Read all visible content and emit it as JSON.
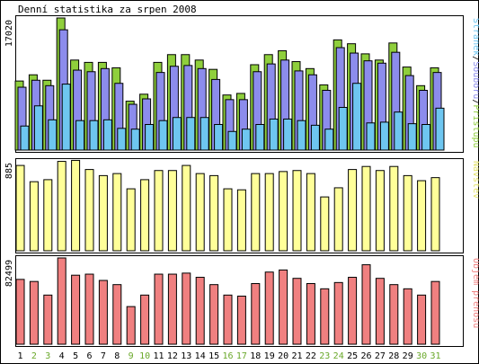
{
  "chart_title": "Denní statistika za srpen 2008",
  "colors": {
    "access": "#8fcf3c",
    "files": "#8c8cec",
    "pages": "#6ec6f0",
    "visits": "#ffff99",
    "volume": "#f08080",
    "weekend_day": "#6aa82a",
    "weekday": "#000000"
  },
  "chart_data": [
    {
      "type": "bar",
      "panel": "access",
      "ymax_label": "17020",
      "ymax": 17020,
      "legend": [
        {
          "text": "Stránek",
          "color": "#6ec6f0"
        },
        {
          "text": "/",
          "color": "#000000"
        },
        {
          "text": "Souborů",
          "color": "#8c8cec"
        },
        {
          "text": "/",
          "color": "#000000"
        },
        {
          "text": "Přístupů",
          "color": "#8fcf3c"
        }
      ],
      "categories": [
        "1",
        "2",
        "3",
        "4",
        "5",
        "6",
        "7",
        "8",
        "9",
        "10",
        "11",
        "12",
        "13",
        "14",
        "15",
        "16",
        "17",
        "18",
        "19",
        "20",
        "21",
        "22",
        "23",
        "24",
        "25",
        "26",
        "27",
        "28",
        "29",
        "30",
        "31"
      ],
      "weekend": [
        false,
        true,
        true,
        false,
        false,
        false,
        false,
        false,
        true,
        true,
        false,
        false,
        false,
        false,
        false,
        true,
        true,
        false,
        false,
        false,
        false,
        false,
        true,
        true,
        false,
        false,
        false,
        false,
        false,
        true,
        true
      ],
      "series": [
        {
          "name": "Přístupů",
          "values": [
            8900,
            9700,
            9000,
            17020,
            11600,
            11300,
            11300,
            10600,
            6300,
            7200,
            11300,
            12300,
            12300,
            11600,
            10400,
            7100,
            7300,
            11000,
            12300,
            12800,
            11400,
            10500,
            8400,
            14200,
            13700,
            12400,
            11600,
            13800,
            10700,
            8300,
            10600
          ]
        },
        {
          "name": "Souborů",
          "values": [
            8100,
            9000,
            8300,
            15500,
            10300,
            10100,
            10500,
            8600,
            5900,
            6600,
            10000,
            10800,
            10900,
            10500,
            9100,
            6500,
            6500,
            10100,
            11100,
            11600,
            10200,
            9700,
            7700,
            13200,
            12500,
            11500,
            11200,
            12600,
            9600,
            7700,
            10000
          ]
        },
        {
          "name": "Stránek",
          "values": [
            3100,
            5700,
            3900,
            8500,
            3800,
            3800,
            3900,
            2800,
            2700,
            3300,
            3800,
            4200,
            4200,
            4200,
            3300,
            2400,
            2700,
            3300,
            4000,
            4000,
            3800,
            3200,
            2700,
            5500,
            8600,
            3500,
            3600,
            4900,
            3400,
            3300,
            5400
          ]
        }
      ]
    },
    {
      "type": "bar",
      "panel": "visits",
      "ymax_label": "885",
      "ymax": 885,
      "legend": [
        {
          "text": "Návštěv",
          "color": "#e3e36a"
        }
      ],
      "values": [
        840,
        680,
        700,
        880,
        890,
        800,
        740,
        760,
        610,
        700,
        790,
        790,
        840,
        760,
        740,
        610,
        600,
        760,
        760,
        780,
        790,
        760,
        530,
        620,
        800,
        830,
        790,
        830,
        740,
        690,
        720
      ]
    },
    {
      "type": "bar",
      "panel": "volume",
      "ymax_label": "82499",
      "ymax": 82499,
      "legend": [
        {
          "text": "Objem přenosu",
          "color": "#f08080"
        }
      ],
      "values": [
        62000,
        60000,
        47000,
        82499,
        66000,
        67000,
        61000,
        57000,
        36000,
        47000,
        67000,
        67000,
        68000,
        64000,
        57000,
        47000,
        46000,
        58000,
        69000,
        71000,
        63000,
        58000,
        53000,
        59000,
        64000,
        76000,
        63000,
        57000,
        53000,
        47000,
        60000
      ]
    }
  ]
}
